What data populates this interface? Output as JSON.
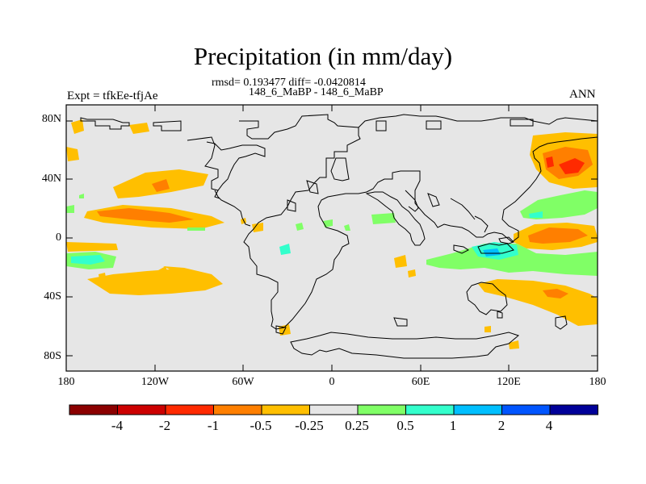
{
  "figure": {
    "title": "Precipitation (in mm/day)",
    "stats_line": "rmsd= 0.193477 diff= -0.0420814",
    "subtitle": "148_6_MaBP - 148_6_MaBP",
    "left_label": "Expt = tfkEe-tfjAe",
    "right_label": "ANN"
  },
  "axes": {
    "y_ticks": [
      "80N",
      "40N",
      "0",
      "40S",
      "80S"
    ],
    "x_ticks": [
      "180",
      "120W",
      "60W",
      "0",
      "60E",
      "120E",
      "180"
    ]
  },
  "colorbar": {
    "colors": [
      "#8b0000",
      "#cc0000",
      "#ff2a00",
      "#ff7f00",
      "#ffbf00",
      "#e6e6e6",
      "#80ff66",
      "#33ffcc",
      "#00bfff",
      "#0055ff",
      "#000099"
    ],
    "labels": [
      "-4",
      "-2",
      "-1",
      "-0.5",
      "-0.25",
      "0.25",
      "0.5",
      "1",
      "2",
      "4"
    ]
  },
  "colors": {
    "background": "#e6e6e6",
    "neg_light": "#ffbf00",
    "neg_medium": "#ff7f00",
    "neg_strong": "#ff2a00",
    "pos_light": "#80ff66",
    "pos_medium": "#33ffcc",
    "pos_strong": "#00bfff"
  }
}
